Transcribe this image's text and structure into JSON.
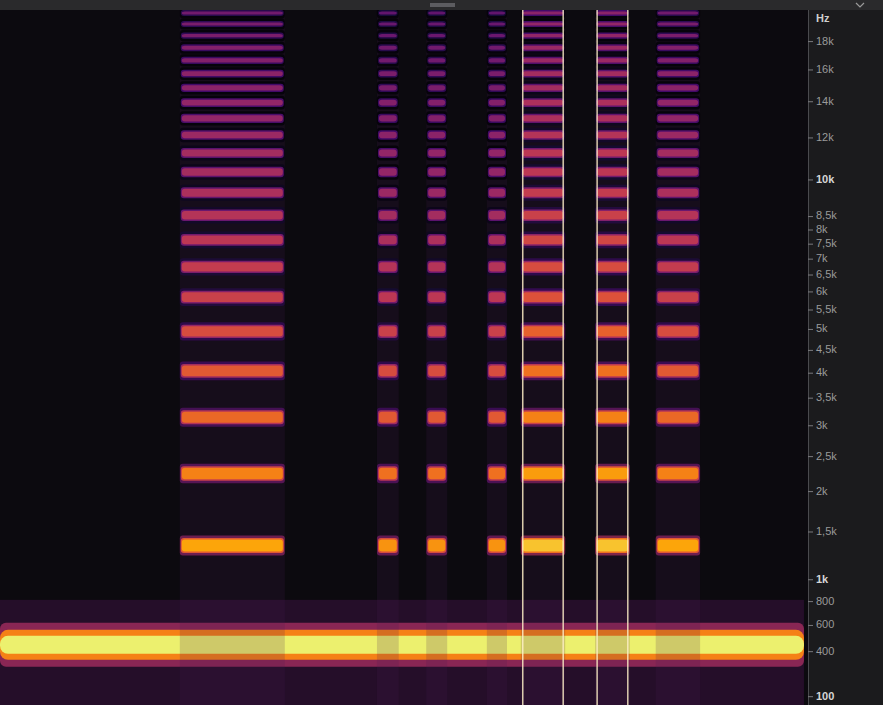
{
  "chart_data": {
    "type": "spectrogram",
    "y_label": "Hz",
    "xlim": [
      0,
      10
    ],
    "ylim": [
      50,
      20500
    ],
    "yticks": [
      100,
      400,
      600,
      800,
      {
        "value": 1000,
        "label": "1k"
      },
      {
        "value": 1500,
        "label": "1,5k"
      },
      {
        "value": 2000,
        "label": "2k"
      },
      {
        "value": 2500,
        "label": "2,5k"
      },
      {
        "value": 3000,
        "label": "3k"
      },
      {
        "value": 3500,
        "label": "3,5k"
      },
      {
        "value": 4000,
        "label": "4k"
      },
      {
        "value": 4500,
        "label": "4,5k"
      },
      {
        "value": 5000,
        "label": "5k"
      },
      {
        "value": 5500,
        "label": "5,5k"
      },
      {
        "value": 6000,
        "label": "6k"
      },
      {
        "value": 6500,
        "label": "6,5k"
      },
      {
        "value": 7000,
        "label": "7k"
      },
      {
        "value": 7500,
        "label": "7,5k"
      },
      {
        "value": 8000,
        "label": "8k"
      },
      {
        "value": 8500,
        "label": "8,5k"
      },
      {
        "value": 10000,
        "label": "10k"
      },
      {
        "value": 12000,
        "label": "12k"
      },
      {
        "value": 14000,
        "label": "14k"
      },
      {
        "value": 16000,
        "label": "16k"
      },
      {
        "value": 18000,
        "label": "18k"
      }
    ],
    "tick_labels": "y",
    "zlim": [
      -50,
      0
    ],
    "tones": [
      {
        "freq": 450,
        "start": 0,
        "end": 9.95,
        "level": 0
      }
    ],
    "segments": [
      {
        "start": 2.25,
        "end": 3.5,
        "gain": 0
      },
      {
        "start": 4.69,
        "end": 4.91,
        "gain": -2
      },
      {
        "start": 5.3,
        "end": 5.51,
        "gain": -2
      },
      {
        "start": 6.05,
        "end": 6.25,
        "gain": -2
      },
      {
        "start": 6.47,
        "end": 6.97,
        "gain": 3
      },
      {
        "start": 7.39,
        "end": 7.77,
        "gain": 3
      },
      {
        "start": 8.14,
        "end": 8.64,
        "gain": 0
      }
    ],
    "harmonics": {
      "freq": [
        1350,
        2250,
        3150,
        4050,
        4950,
        5850,
        6750,
        7650,
        8550,
        9450,
        10350,
        11250,
        12150,
        13050,
        13950,
        14850,
        15750,
        16650,
        17550,
        18450,
        19350,
        20250
      ],
      "level": [
        -10,
        -14,
        -17,
        -19,
        -21,
        -23,
        -24,
        -25,
        -26,
        -27,
        -28,
        -28,
        -29,
        -30,
        -30,
        -31,
        -31,
        -32,
        -32,
        -33,
        -33,
        -34
      ]
    },
    "transients": [
      6.47,
      6.97,
      7.39,
      7.77
    ]
  }
}
